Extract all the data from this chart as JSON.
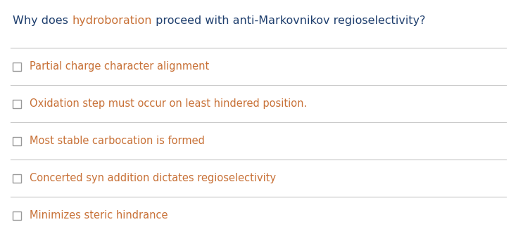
{
  "background_color": "#ffffff",
  "question_parts": [
    {
      "text": "Why does ",
      "color": "#1f3f6e"
    },
    {
      "text": "hydroboration",
      "color": "#c87137"
    },
    {
      "text": " proceed with anti-Markovnikov regioselectivity?",
      "color": "#1f3f6e"
    }
  ],
  "options": [
    "Partial charge character alignment",
    "Oxidation step must occur on least hindered position.",
    "Most stable carbocation is formed",
    "Concerted syn addition dictates regioselectivity",
    "Minimizes steric hindrance"
  ],
  "option_color": "#c87137",
  "separator_color": "#c8c8c8",
  "checkbox_color": "#999999",
  "question_fontsize": 11.5,
  "option_fontsize": 10.5,
  "fig_width": 7.26,
  "fig_height": 3.43,
  "dpi": 100
}
